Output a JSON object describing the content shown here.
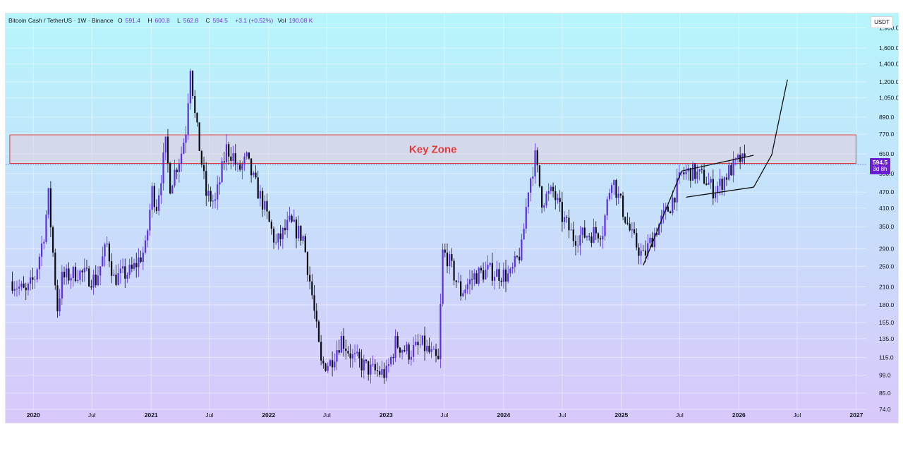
{
  "header": {
    "symbol": "Bitcoin Cash / TetherUS · 1W · Binance",
    "open_label": "O",
    "open": "591.4",
    "high_label": "H",
    "high": "600.8",
    "low_label": "L",
    "low": "562.8",
    "close_label": "C",
    "close": "594.5",
    "change": "+3.1 (+0.52%)",
    "vol_label": "Vol",
    "vol": "190.08 K"
  },
  "currency_unit": "USDT",
  "price_badge": {
    "price": "594.5",
    "countdown": "3d 8h"
  },
  "colors": {
    "up": "#5b2fe0",
    "down": "#0a0a12",
    "bg_top": "#b6f5fb",
    "bg_bottom": "#d9c8fb",
    "zone": "#e23a3a",
    "badge": "#6a1fd0"
  },
  "chart_data": {
    "type": "candlestick",
    "y_scale": "log",
    "ylim": [
      66,
      2150
    ],
    "xlim": [
      "2019-10-07",
      "2027-02-01"
    ],
    "y_ticks": [
      "1,900.0",
      "1,600.0",
      "1,400.0",
      "1,200.0",
      "1,050.0",
      "890.0",
      "770.0",
      "650.0",
      "550.0",
      "470.0",
      "410.0",
      "350.0",
      "290.0",
      "250.0",
      "210.0",
      "180.0",
      "155.0",
      "135.0",
      "115.0",
      "99.0",
      "85.0",
      "74.0"
    ],
    "y_tick_values": [
      1900,
      1600,
      1400,
      1200,
      1050,
      890,
      770,
      650,
      550,
      470,
      410,
      350,
      290,
      250,
      210,
      180,
      155,
      135,
      115,
      99,
      85,
      74
    ],
    "x_ticks": [
      {
        "label": "2020",
        "date": "2020-01-01",
        "bold": true
      },
      {
        "label": "Jul",
        "date": "2020-07-01",
        "bold": false
      },
      {
        "label": "2021",
        "date": "2021-01-01",
        "bold": true
      },
      {
        "label": "Jul",
        "date": "2021-07-01",
        "bold": false
      },
      {
        "label": "2022",
        "date": "2022-01-01",
        "bold": true
      },
      {
        "label": "Jul",
        "date": "2022-07-01",
        "bold": false
      },
      {
        "label": "2023",
        "date": "2023-01-01",
        "bold": true
      },
      {
        "label": "Jul",
        "date": "2023-07-01",
        "bold": false
      },
      {
        "label": "2024",
        "date": "2024-01-01",
        "bold": true
      },
      {
        "label": "Jul",
        "date": "2024-07-01",
        "bold": false
      },
      {
        "label": "2025",
        "date": "2025-01-01",
        "bold": true
      },
      {
        "label": "Jul",
        "date": "2025-07-01",
        "bold": false
      },
      {
        "label": "2026",
        "date": "2026-01-01",
        "bold": true
      },
      {
        "label": "Jul",
        "date": "2026-07-01",
        "bold": false
      },
      {
        "label": "2027",
        "date": "2027-01-01",
        "bold": true
      }
    ],
    "last_price": 594.5,
    "key_zone": {
      "label": "Key Zone",
      "from": "2019-10-20",
      "to": "2026-12-31",
      "low": 600,
      "high": 765
    },
    "trendlines": [
      {
        "name": "support-rise",
        "points": [
          [
            "2025-03-10",
            252
          ],
          [
            "2025-07-07",
            562
          ]
        ]
      },
      {
        "name": "channel-upper",
        "points": [
          [
            "2025-07-07",
            562
          ],
          [
            "2026-02-16",
            643
          ]
        ]
      },
      {
        "name": "channel-lower",
        "points": [
          [
            "2025-07-21",
            450
          ],
          [
            "2026-02-16",
            490
          ]
        ]
      },
      {
        "name": "projection",
        "points": [
          [
            "2026-02-16",
            490
          ],
          [
            "2026-04-13",
            645
          ],
          [
            "2026-06-01",
            1225
          ]
        ]
      }
    ],
    "anchors": [
      [
        "2019-10-28",
        220
      ],
      [
        "2019-12-09",
        198
      ],
      [
        "2020-01-06",
        228
      ],
      [
        "2020-02-03",
        330
      ],
      [
        "2020-02-17",
        455
      ],
      [
        "2020-03-09",
        220
      ],
      [
        "2020-03-16",
        175
      ],
      [
        "2020-03-30",
        225
      ],
      [
        "2020-05-18",
        238
      ],
      [
        "2020-07-13",
        222
      ],
      [
        "2020-08-17",
        300
      ],
      [
        "2020-09-07",
        225
      ],
      [
        "2020-11-02",
        240
      ],
      [
        "2020-12-14",
        290
      ],
      [
        "2021-01-04",
        475
      ],
      [
        "2021-01-18",
        420
      ],
      [
        "2021-02-15",
        700
      ],
      [
        "2021-03-01",
        500
      ],
      [
        "2021-04-05",
        660
      ],
      [
        "2021-04-19",
        800
      ],
      [
        "2021-05-03",
        1400
      ],
      [
        "2021-05-17",
        900
      ],
      [
        "2021-06-07",
        600
      ],
      [
        "2021-06-21",
        460
      ],
      [
        "2021-07-19",
        430
      ],
      [
        "2021-08-23",
        680
      ],
      [
        "2021-09-13",
        640
      ],
      [
        "2021-09-27",
        560
      ],
      [
        "2021-10-25",
        620
      ],
      [
        "2021-11-15",
        520
      ],
      [
        "2021-12-13",
        430
      ],
      [
        "2022-01-24",
        300
      ],
      [
        "2022-02-14",
        330
      ],
      [
        "2022-03-07",
        360
      ],
      [
        "2022-04-18",
        320
      ],
      [
        "2022-05-16",
        195
      ],
      [
        "2022-06-13",
        108
      ],
      [
        "2022-07-11",
        110
      ],
      [
        "2022-08-15",
        135
      ],
      [
        "2022-09-19",
        115
      ],
      [
        "2022-11-14",
        103
      ],
      [
        "2023-01-02",
        100
      ],
      [
        "2023-01-30",
        130
      ],
      [
        "2023-03-13",
        120
      ],
      [
        "2023-04-24",
        128
      ],
      [
        "2023-06-12",
        110
      ],
      [
        "2023-06-26",
        280
      ],
      [
        "2023-07-10",
        270
      ],
      [
        "2023-08-21",
        200
      ],
      [
        "2023-10-02",
        230
      ],
      [
        "2023-11-13",
        240
      ],
      [
        "2024-01-22",
        230
      ],
      [
        "2024-02-26",
        290
      ],
      [
        "2024-03-18",
        490
      ],
      [
        "2024-04-08",
        630
      ],
      [
        "2024-04-29",
        440
      ],
      [
        "2024-06-03",
        470
      ],
      [
        "2024-07-01",
        380
      ],
      [
        "2024-08-05",
        320
      ],
      [
        "2024-09-30",
        330
      ],
      [
        "2024-11-04",
        340
      ],
      [
        "2024-12-02",
        540
      ],
      [
        "2024-12-23",
        450
      ],
      [
        "2025-02-03",
        320
      ],
      [
        "2025-03-10",
        270
      ],
      [
        "2025-04-21",
        345
      ],
      [
        "2025-06-02",
        420
      ],
      [
        "2025-07-07",
        545
      ],
      [
        "2025-08-04",
        560
      ],
      [
        "2025-09-15",
        530
      ],
      [
        "2025-10-13",
        480
      ],
      [
        "2025-11-03",
        500
      ],
      [
        "2025-12-01",
        560
      ],
      [
        "2026-01-05",
        620
      ],
      [
        "2026-01-19",
        594.5
      ]
    ]
  }
}
